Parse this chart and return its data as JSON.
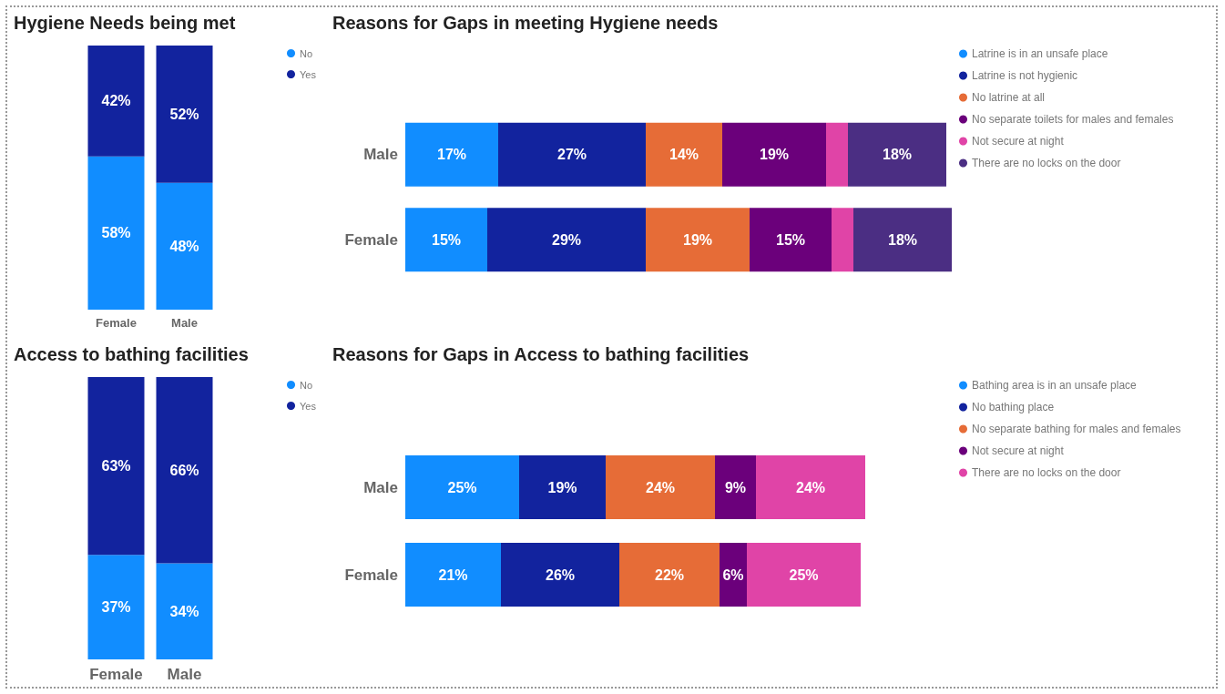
{
  "chart_data": [
    {
      "type": "bar",
      "title": "Hygiene Needs being met",
      "categories": [
        "Female",
        "Male"
      ],
      "stacked": true,
      "legend": "top right",
      "tick_labels": "x",
      "series": [
        {
          "name": "No",
          "color": "#118dff",
          "values": [
            58,
            48
          ],
          "value_labels": [
            "58%",
            "48%"
          ]
        },
        {
          "name": "Yes",
          "color": "#12239e",
          "values": [
            42,
            52
          ],
          "value_labels": [
            "42%",
            "52%"
          ]
        }
      ]
    },
    {
      "type": "bar",
      "title": "Reasons for Gaps in meeting Hygiene needs",
      "categories": [
        "Male",
        "Female"
      ],
      "stacked": true,
      "orientation": "horizontal",
      "legend": "top right",
      "tick_labels": "y",
      "series": [
        {
          "name": "Latrine is in an unsafe place",
          "color": "#118dff",
          "values": [
            17,
            15
          ],
          "value_labels": [
            "17%",
            "15%"
          ]
        },
        {
          "name": "Latrine is not hygienic",
          "color": "#12239e",
          "values": [
            27,
            29
          ],
          "value_labels": [
            "27%",
            "29%"
          ]
        },
        {
          "name": "No latrine at all",
          "color": "#e66c37",
          "values": [
            14,
            19
          ],
          "value_labels": [
            "14%",
            "19%"
          ]
        },
        {
          "name": "No separate toilets for males and females",
          "color": "#6b007b",
          "values": [
            19,
            15
          ],
          "value_labels": [
            "19%",
            "15%"
          ]
        },
        {
          "name": "Not secure at night",
          "color": "#e044a7",
          "values": [
            4,
            4
          ],
          "value_labels": [
            null,
            null
          ]
        },
        {
          "name": "There are no locks on the door",
          "color": "#4b2e83",
          "values": [
            18,
            18
          ],
          "value_labels": [
            "18%",
            "18%"
          ]
        }
      ]
    },
    {
      "type": "bar",
      "title": "Access to bathing facilities",
      "categories": [
        "Female",
        "Male"
      ],
      "stacked": true,
      "legend": "top right",
      "tick_labels": "x",
      "series": [
        {
          "name": "No",
          "color": "#118dff",
          "values": [
            37,
            34
          ],
          "value_labels": [
            "37%",
            "34%"
          ]
        },
        {
          "name": "Yes",
          "color": "#12239e",
          "values": [
            63,
            66
          ],
          "value_labels": [
            "63%",
            "66%"
          ]
        }
      ]
    },
    {
      "type": "bar",
      "title": "Reasons for Gaps in Access to bathing facilities",
      "categories": [
        "Male",
        "Female"
      ],
      "stacked": true,
      "orientation": "horizontal",
      "legend": "top right",
      "tick_labels": "y",
      "series": [
        {
          "name": "Bathing area is in an unsafe place",
          "color": "#118dff",
          "values": [
            25,
            21
          ],
          "value_labels": [
            "25%",
            "21%"
          ]
        },
        {
          "name": "No bathing place",
          "color": "#12239e",
          "values": [
            19,
            26
          ],
          "value_labels": [
            "19%",
            "26%"
          ]
        },
        {
          "name": "No separate bathing for males and females",
          "color": "#e66c37",
          "values": [
            24,
            22
          ],
          "value_labels": [
            "24%",
            "22%"
          ]
        },
        {
          "name": "Not secure at night",
          "color": "#6b007b",
          "values": [
            9,
            6
          ],
          "value_labels": [
            "9%",
            "6%"
          ]
        },
        {
          "name": "There are no locks on the door",
          "color": "#e044a7",
          "values": [
            24,
            25
          ],
          "value_labels": [
            "24%",
            "25%"
          ]
        }
      ]
    }
  ]
}
